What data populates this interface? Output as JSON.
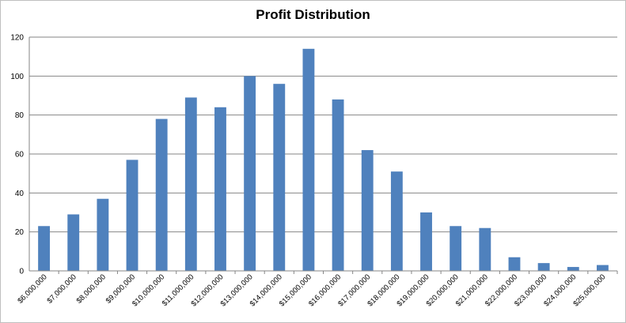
{
  "chart_data": {
    "type": "bar",
    "title": "Profit Distribution",
    "xlabel": "",
    "ylabel": "",
    "ylim": [
      0,
      120
    ],
    "yticks": [
      "0",
      "20",
      "40",
      "60",
      "80",
      "100",
      "120"
    ],
    "grid": true,
    "legend": "none",
    "bar_color": "#4f81bd",
    "grid_color": "#868686",
    "categories": [
      "$6,000,000",
      "$7,000,000",
      "$8,000,000",
      "$9,000,000",
      "$10,000,000",
      "$11,000,000",
      "$12,000,000",
      "$13,000,000",
      "$14,000,000",
      "$15,000,000",
      "$16,000,000",
      "$17,000,000",
      "$18,000,000",
      "$19,000,000",
      "$20,000,000",
      "$21,000,000",
      "$22,000,000",
      "$23,000,000",
      "$24,000,000",
      "$25,000,000"
    ],
    "values": [
      23,
      29,
      37,
      57,
      78,
      89,
      84,
      100,
      96,
      114,
      88,
      62,
      51,
      30,
      23,
      22,
      7,
      4,
      2,
      3
    ]
  }
}
